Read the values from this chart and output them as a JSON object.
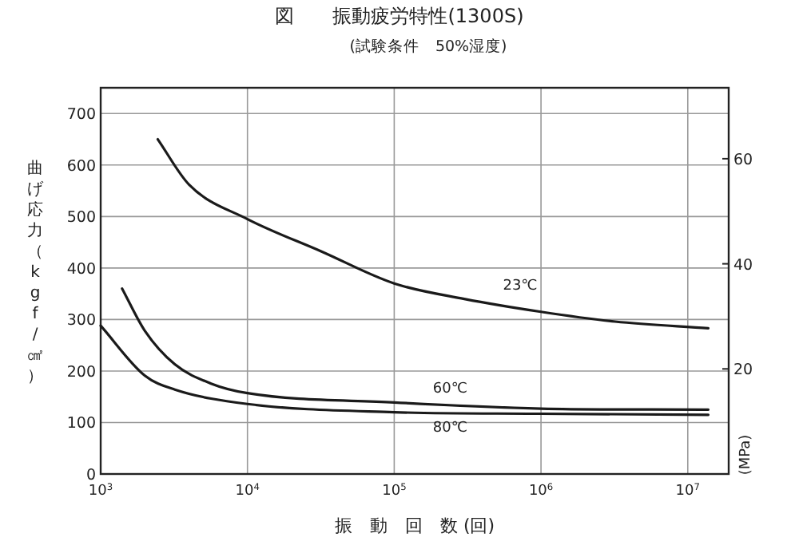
{
  "chart_data": {
    "type": "line",
    "title": "図　　振動疲労特性(1300S)",
    "subtitle": "(試験条件　50%湿度)",
    "xlabel": "振　動　回　数 (回)",
    "ylabel": "曲げ応力（kgf/㎠）",
    "y2label": "(MPa)",
    "log": "x",
    "grid": true,
    "line_style": "solid",
    "xlim": [
      1000,
      19000000
    ],
    "xticks": [
      {
        "value": 1000,
        "label": "10$^{3}$"
      },
      {
        "value": 10000,
        "label": "10$^{4}$"
      },
      {
        "value": 100000,
        "label": "10$^{5}$"
      },
      {
        "value": 1000000,
        "label": "10$^{6}$"
      },
      {
        "value": 10000000,
        "label": "10$^{7}$"
      }
    ],
    "ylim": [
      0,
      750
    ],
    "yticks": [
      0,
      100,
      200,
      300,
      400,
      500,
      600,
      700
    ],
    "y2lim": [
      0,
      73.5
    ],
    "y2ticks": [
      20,
      40,
      60
    ],
    "series": [
      {
        "name": "23℃",
        "color": "#1a1a1a",
        "x": [
          2450,
          4000,
          10000,
          32000,
          100000,
          300000,
          1000000,
          3200000,
          13800000
        ],
        "values": [
          650,
          562,
          495,
          432,
          370,
          340,
          315,
          296,
          283
        ]
      },
      {
        "name": "60℃",
        "color": "#1a1a1a",
        "x": [
          1400,
          2000,
          3200,
          5600,
          10000,
          100000,
          1000000,
          13800000
        ],
        "values": [
          360,
          278,
          213,
          176,
          157,
          139,
          127,
          125
        ]
      },
      {
        "name": "80℃",
        "color": "#1a1a1a",
        "x": [
          1000,
          2000,
          3200,
          10000,
          100000,
          1000000,
          13800000
        ],
        "values": [
          288,
          191,
          164,
          136,
          120,
          117,
          115
        ]
      }
    ]
  }
}
